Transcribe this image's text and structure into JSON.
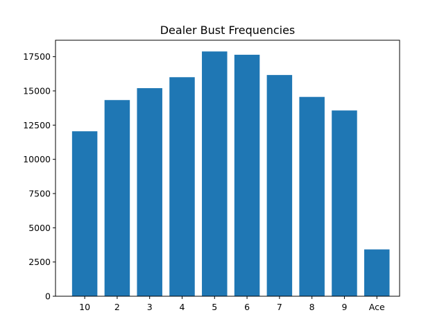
{
  "chart_data": {
    "type": "bar",
    "title": "Dealer Bust Frequencies",
    "xlabel": "",
    "ylabel": "",
    "categories": [
      "10",
      "2",
      "3",
      "4",
      "5",
      "6",
      "7",
      "8",
      "9",
      "Ace"
    ],
    "values": [
      12050,
      14330,
      15200,
      16000,
      17880,
      17640,
      16160,
      14560,
      13570,
      3420
    ],
    "ylim": [
      0,
      18700
    ],
    "yticks": [
      0,
      2500,
      5000,
      7500,
      10000,
      12500,
      15000,
      17500
    ],
    "ytick_labels": [
      "0",
      "2500",
      "5000",
      "7500",
      "10000",
      "12500",
      "15000",
      "17500"
    ],
    "bar_color": "#1f77b4",
    "grid": false,
    "legend": "none"
  }
}
